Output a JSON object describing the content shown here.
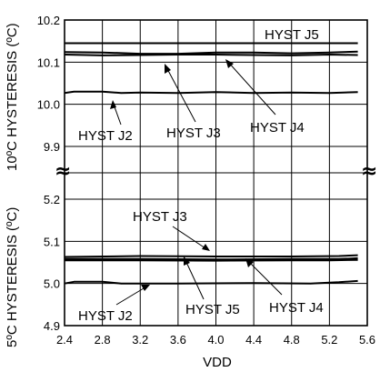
{
  "chart_data": [
    {
      "type": "line",
      "ylabel": "10ºC HYSTERESIS (ºC)",
      "xlim": [
        2.4,
        5.6
      ],
      "ylim": [
        9.9,
        10.2
      ],
      "y_ticks": [
        "10.2",
        "10.1",
        "10.0",
        "9.9"
      ],
      "grid": true,
      "series": [
        {
          "name": "HYST J5",
          "x": [
            2.4,
            5.5
          ],
          "values": [
            10.145,
            10.145
          ]
        },
        {
          "name": "HYST J3",
          "x": [
            2.4,
            2.8,
            3.2,
            3.6,
            4.0,
            4.4,
            4.8,
            5.2,
            5.5
          ],
          "values": [
            10.118,
            10.116,
            10.117,
            10.118,
            10.118,
            10.117,
            10.116,
            10.118,
            10.117
          ]
        },
        {
          "name": "HYST J4",
          "x": [
            2.4,
            2.8,
            3.2,
            3.6,
            4.0,
            4.4,
            4.8,
            5.2,
            5.5
          ],
          "values": [
            10.124,
            10.123,
            10.12,
            10.12,
            10.123,
            10.123,
            10.121,
            10.123,
            10.125
          ]
        },
        {
          "name": "HYST J2",
          "x": [
            2.4,
            2.5,
            2.8,
            3.0,
            3.2,
            3.6,
            4.0,
            4.4,
            4.8,
            5.2,
            5.5
          ],
          "values": [
            10.027,
            10.03,
            10.03,
            10.027,
            10.028,
            10.027,
            10.029,
            10.027,
            10.028,
            10.027,
            10.029
          ]
        }
      ]
    },
    {
      "type": "line",
      "xlabel": "VDD",
      "ylabel": "5ºC HYSTERESIS (ºC)",
      "xlim": [
        2.4,
        5.6
      ],
      "ylim": [
        4.9,
        5.2
      ],
      "x_ticks": [
        "2.4",
        "2.8",
        "3.2",
        "3.6",
        "4.0",
        "4.4",
        "4.8",
        "5.2",
        "5.6"
      ],
      "y_ticks": [
        "5.2",
        "5.1",
        "5.0",
        "4.9"
      ],
      "grid": true,
      "series": [
        {
          "name": "HYST J3",
          "x": [
            2.4,
            3.2,
            4.0,
            4.8,
            5.3,
            5.5
          ],
          "values": [
            5.063,
            5.065,
            5.064,
            5.064,
            5.065,
            5.067
          ]
        },
        {
          "name": "HYST J5",
          "x": [
            2.4,
            3.2,
            4.0,
            4.8,
            5.3,
            5.5
          ],
          "values": [
            5.058,
            5.058,
            5.057,
            5.058,
            5.058,
            5.06
          ]
        },
        {
          "name": "HYST J4",
          "x": [
            2.4,
            3.2,
            4.0,
            4.8,
            5.2,
            5.5
          ],
          "values": [
            5.055,
            5.055,
            5.054,
            5.055,
            5.055,
            5.056
          ]
        },
        {
          "name": "HYST J2",
          "x": [
            2.4,
            2.5,
            2.8,
            3.0,
            3.6,
            4.4,
            5.0,
            5.3,
            5.5
          ],
          "values": [
            5.0,
            5.004,
            5.004,
            5.0,
            5.0,
            5.001,
            5.0,
            5.003,
            5.006
          ]
        }
      ]
    }
  ],
  "annotations": {
    "top_j5": "HYST J5",
    "top_j2": "HYST J2",
    "top_j3": "HYST J3",
    "top_j4": "HYST J4",
    "bot_j3": "HYST J3",
    "bot_j2": "HYST J2",
    "bot_j5": "HYST J5",
    "bot_j4": "HYST J4"
  },
  "axis_break_symbol": "≈"
}
